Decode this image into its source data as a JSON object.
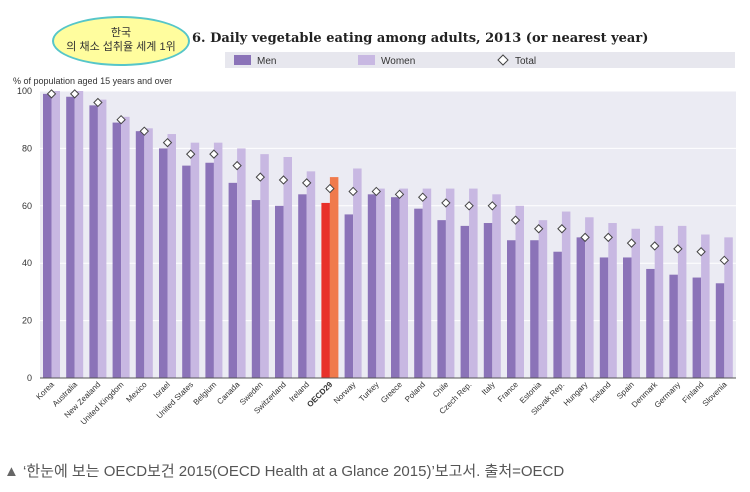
{
  "annotation": {
    "title": "한국",
    "text": "의 채소 섭취율 세계 1위"
  },
  "caption": {
    "arrow": "▲",
    "text": "‘한눈에 보는 OECD보건 2015(OECD Health at a Glance 2015)’보고서. 출처=OECD"
  },
  "chart_data": {
    "type": "bar",
    "title": "6. Daily vegetable eating among adults, 2013 (or nearest year)",
    "ylabel": "% of population aged 15 years and over",
    "xlabel": "",
    "ylim": [
      0,
      100
    ],
    "yticks": [
      0,
      20,
      40,
      60,
      80,
      100
    ],
    "grid": true,
    "legend_position": "top",
    "categories": [
      "Korea",
      "Australia",
      "New Zealand",
      "United Kingdom",
      "Mexico",
      "Israel",
      "United States",
      "Belgium",
      "Canada",
      "Sweden",
      "Switzerland",
      "Ireland",
      "OECD29",
      "Norway",
      "Turkey",
      "Greece",
      "Poland",
      "Chile",
      "Czech Rep.",
      "Italy",
      "France",
      "Estonia",
      "Slovak Rep.",
      "Hungary",
      "Iceland",
      "Spain",
      "Denmark",
      "Germany",
      "Finland",
      "Slovenia"
    ],
    "highlight_category": "OECD29",
    "series": [
      {
        "name": "Men",
        "kind": "bar",
        "color": "#8b73b8",
        "highlight_color": "#e8302a",
        "values": [
          99,
          98,
          95,
          89,
          86,
          80,
          74,
          75,
          68,
          62,
          60,
          64,
          61,
          57,
          64,
          63,
          59,
          55,
          53,
          54,
          48,
          48,
          44,
          49,
          42,
          42,
          38,
          36,
          35,
          33
        ]
      },
      {
        "name": "Women",
        "kind": "bar",
        "color": "#c8b8e2",
        "highlight_color": "#f07a4c",
        "values": [
          100,
          100,
          97,
          91,
          87,
          85,
          82,
          82,
          80,
          78,
          77,
          72,
          70,
          73,
          66,
          66,
          66,
          66,
          66,
          64,
          60,
          55,
          58,
          56,
          54,
          52,
          53,
          53,
          50,
          49
        ]
      },
      {
        "name": "Total",
        "kind": "marker",
        "marker": "diamond",
        "values": [
          99,
          99,
          96,
          90,
          86,
          82,
          78,
          78,
          74,
          70,
          69,
          68,
          66,
          65,
          65,
          64,
          63,
          61,
          60,
          60,
          55,
          52,
          52,
          49,
          49,
          47,
          46,
          45,
          44,
          41
        ]
      }
    ]
  }
}
